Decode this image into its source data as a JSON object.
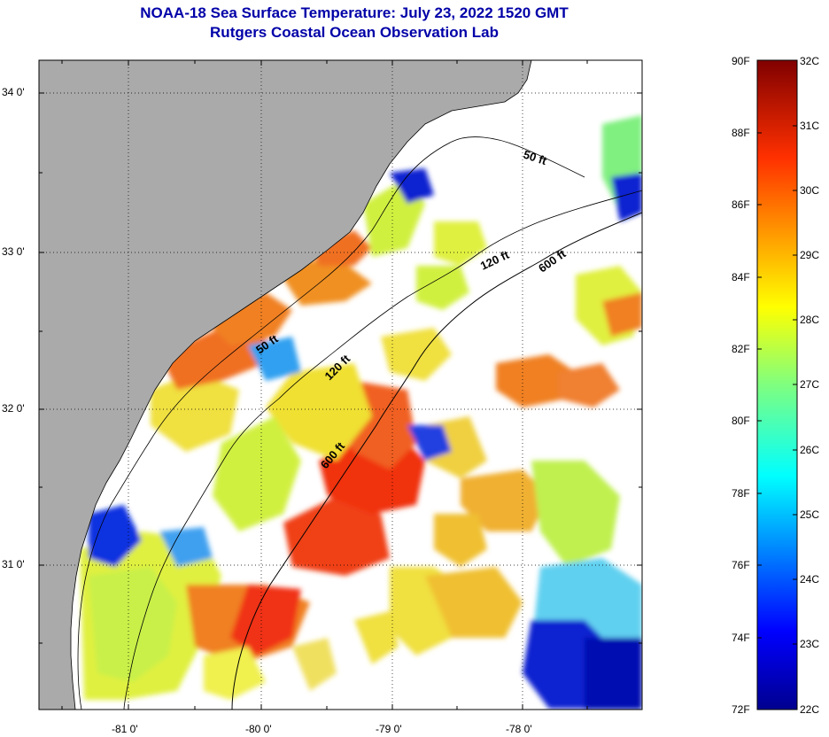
{
  "title": "NOAA-18 Sea Surface Temperature:  July 23, 2022 1520 GMT",
  "subtitle": "Rutgers Coastal Ocean Observation Lab",
  "lat_labels": [
    "34 0'",
    "33 0'",
    "32 0'",
    "31 0'"
  ],
  "lon_labels": [
    "-81 0'",
    "-80 0'",
    "-79 0'",
    "-78 0'"
  ],
  "contour_labels": [
    "50 ft",
    "120 ft",
    "600 ft",
    "50 ft",
    "120 ft",
    "600 ft"
  ],
  "colorbar": {
    "fahrenheit": [
      "90F",
      "88F",
      "86F",
      "84F",
      "82F",
      "80F",
      "78F",
      "76F",
      "74F",
      "72F"
    ],
    "celsius": [
      "32C",
      "31C",
      "30C",
      "29C",
      "28C",
      "27C",
      "26C",
      "25C",
      "24C",
      "23C",
      "22C"
    ]
  },
  "colors": {
    "land": "#aaaaaa",
    "title": "#0000a8",
    "cloud": "#ffffff"
  }
}
